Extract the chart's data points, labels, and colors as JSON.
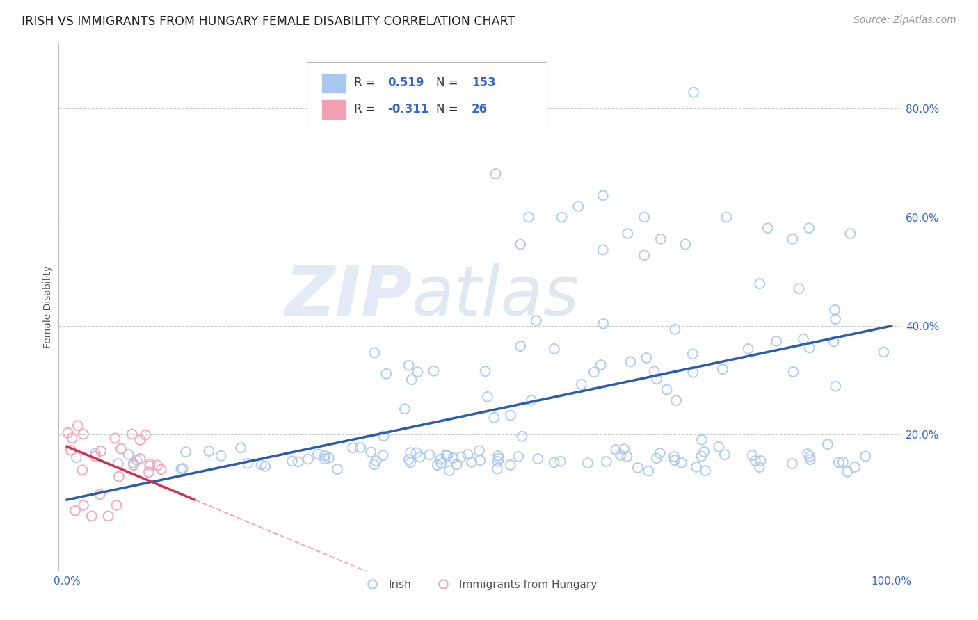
{
  "title": "IRISH VS IMMIGRANTS FROM HUNGARY FEMALE DISABILITY CORRELATION CHART",
  "source": "Source: ZipAtlas.com",
  "ylabel": "Female Disability",
  "irish_R": 0.519,
  "irish_N": 153,
  "hungary_R": -0.311,
  "hungary_N": 26,
  "blue_scatter_color": "#aac8ef",
  "blue_line_color": "#2a5db0",
  "pink_scatter_color": "#f4a0b4",
  "pink_line_color": "#d03050",
  "pink_dash_color": "#f0a8bc",
  "watermark_color": "#d0dff0",
  "background": "#ffffff",
  "title_color": "#222222",
  "legend_text_color": "#3366cc",
  "axis_label_color": "#3366cc",
  "grid_color": "#cccccc",
  "legend_border_color": "#bbbbbb"
}
